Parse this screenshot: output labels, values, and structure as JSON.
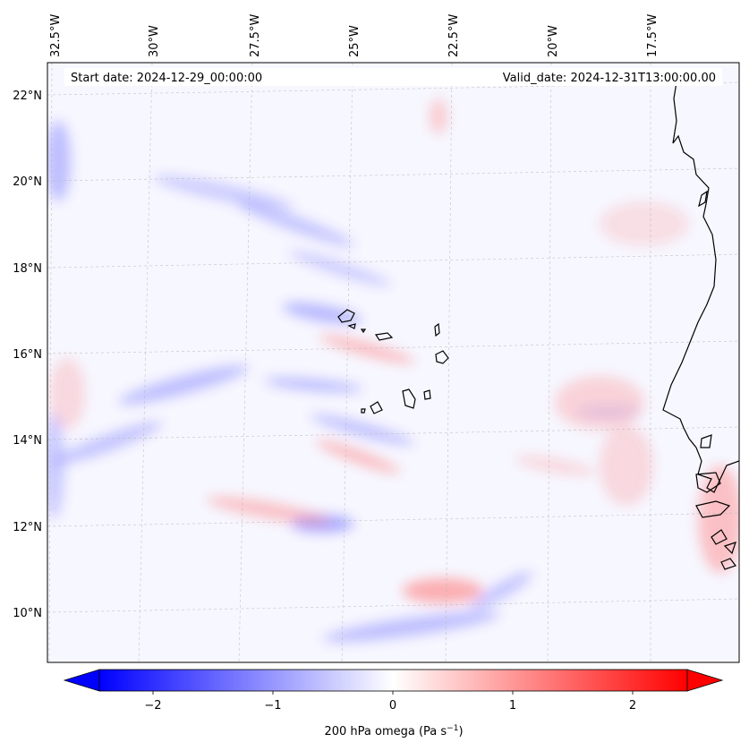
{
  "header": {
    "start_date": "Start date: 2024-12-29_00:00:00",
    "valid_date": "Valid_date: 2024-12-31T13:00:00.00"
  },
  "map": {
    "lon_labels": [
      "32.5°W",
      "30°W",
      "27.5°W",
      "25°W",
      "22.5°W",
      "20°W",
      "17.5°W"
    ],
    "lat_labels": [
      "22°N",
      "20°N",
      "18°N",
      "16°N",
      "14°N",
      "12°N",
      "10°N"
    ],
    "field_colors": {
      "negative": "#6a6aff",
      "positive": "#ff7070",
      "neutral": "#f7f7ff"
    },
    "coastline_color": "#000000"
  },
  "colorbar": {
    "ticks": [
      "−2",
      "−1",
      "0",
      "1",
      "2"
    ],
    "label_main": "200 hPa omega (Pa s",
    "label_sup": "−1",
    "label_close": ")",
    "range": [
      -2.6,
      2.6
    ],
    "cmap": "bwr",
    "min_color": "#0000ff",
    "mid_color": "#ffffff",
    "max_color": "#ff0000"
  }
}
